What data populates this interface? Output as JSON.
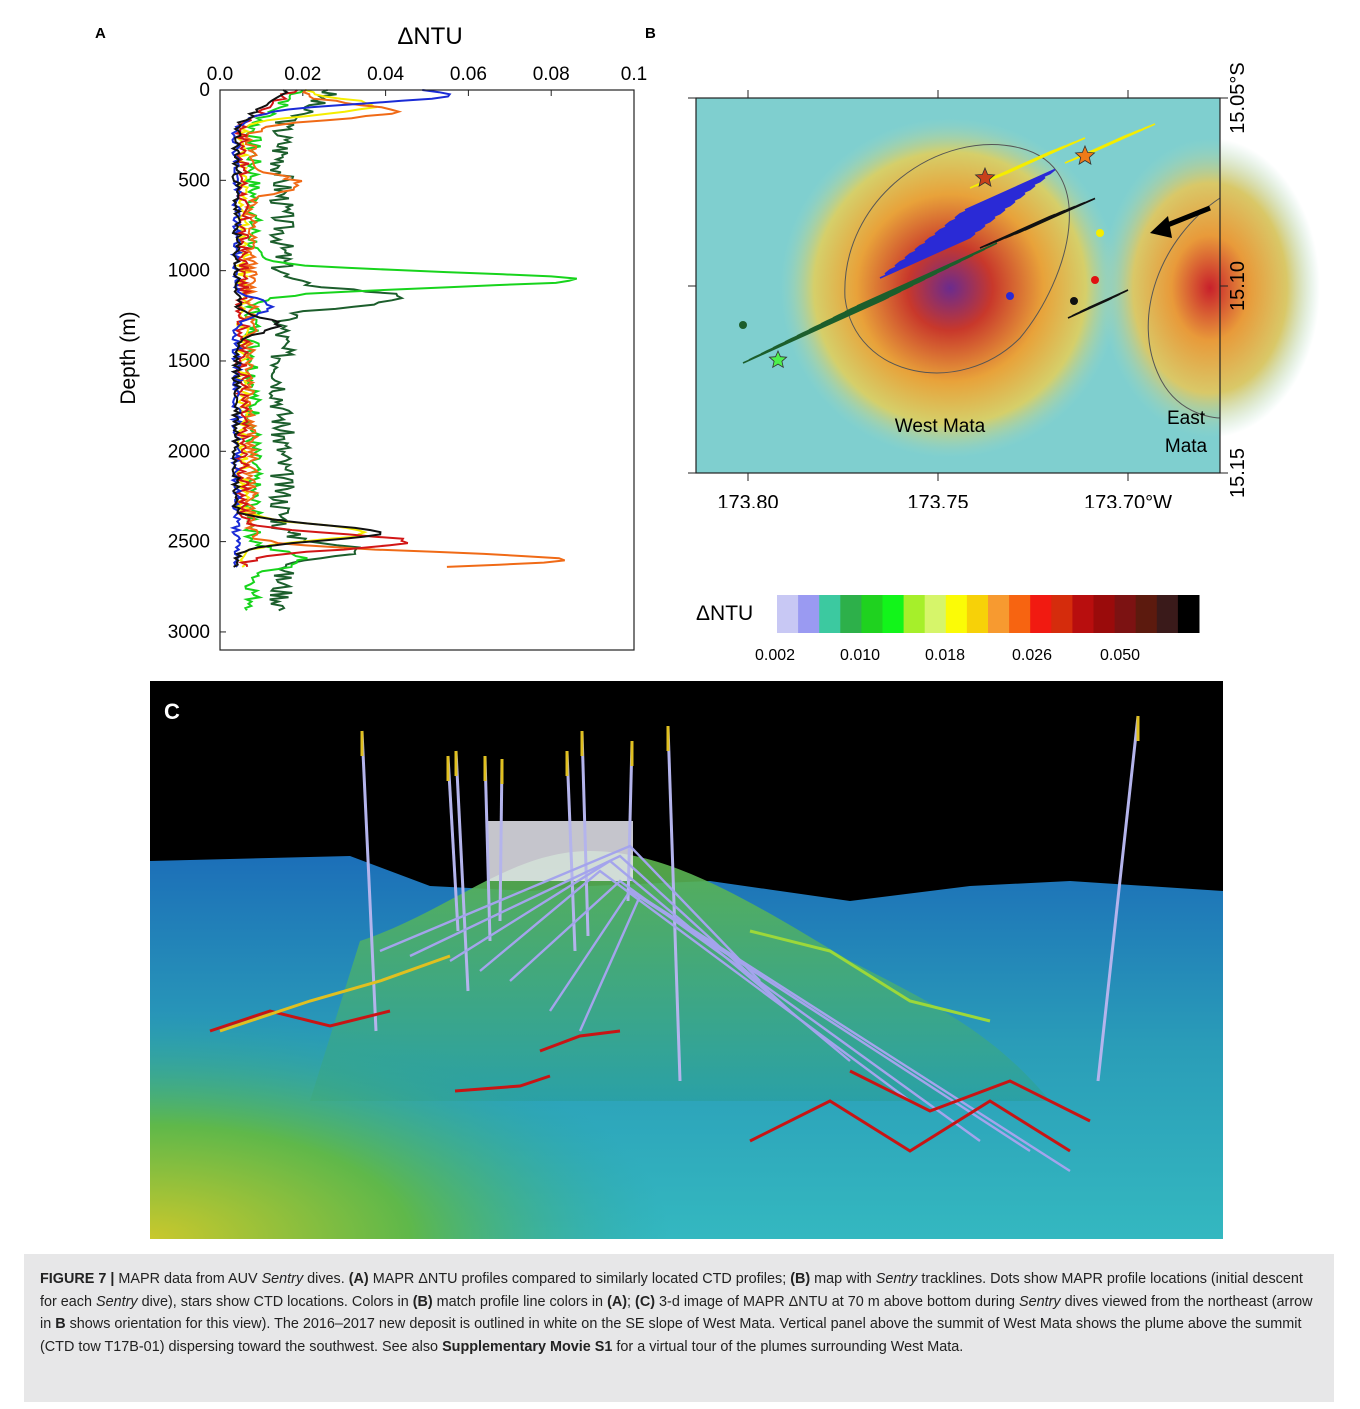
{
  "panelA": {
    "letter": "A",
    "xlabel": "ΔNTU",
    "ylabel": "Depth (m)",
    "xticks": [
      "0.0",
      "0.02",
      "0.04",
      "0.06",
      "0.08",
      "0.1"
    ],
    "yticks": [
      "0",
      "500",
      "1000",
      "1500",
      "2000",
      "2500",
      "3000"
    ]
  },
  "panelB": {
    "letter": "B",
    "lat_labels": [
      "15.05°S",
      "15.10",
      "15.15"
    ],
    "lon_labels": [
      "173.80",
      "173.75",
      "173.70°W"
    ],
    "label_west": "West Mata",
    "label_east_1": "East",
    "label_east_2": "Mata"
  },
  "colorbar": {
    "label": "ΔNTU",
    "tick_labels": [
      "0.002",
      "0.010",
      "0.018",
      "0.026",
      "0.050"
    ],
    "colors": [
      "#c8c8f4",
      "#9a9af2",
      "#3cc9a0",
      "#2db04a",
      "#1fd21f",
      "#12f51a",
      "#a6ef2a",
      "#d6f56a",
      "#fbfb06",
      "#f7d108",
      "#f79a30",
      "#f76411",
      "#f11a11",
      "#d52c0c",
      "#b80e0e",
      "#9a0b0b",
      "#7c1212",
      "#5c1a0e",
      "#3a1a1a",
      "#000000"
    ]
  },
  "panelC": {
    "letter": "C"
  },
  "caption": {
    "fig": "FIGURE 7 |",
    "t1": " MAPR data from AUV ",
    "sentry1": "Sentry",
    "t2": " dives. ",
    "a": "(A)",
    "t3": " MAPR ΔNTU profiles compared to similarly located CTD profiles; ",
    "b": "(B)",
    "t4": " map with ",
    "sentry2": "Sentry",
    "t5": " tracklines. Dots show MAPR profile locations (initial descent for each ",
    "sentry3": "Sentry",
    "t6": " dive), stars show CTD locations. Colors in ",
    "b2": "(B)",
    "t7": " match profile line colors in ",
    "a2": "(A)",
    "t8": "; ",
    "c": "(C)",
    "t9": " 3-d image of MAPR ΔNTU at 70 m above bottom during ",
    "sentry4": "Sentry",
    "t10": " dives viewed from the northeast (arrow in ",
    "bbold": "B",
    "t11": " shows orientation for this view). The 2016–2017 new deposit is outlined in white on the SE slope of West Mata. Vertical panel above the summit of West Mata shows the plume above the summit (CTD tow T17B-01) dispersing toward the southwest. See also ",
    "supp": "Supplementary Movie S1",
    "t12": " for a virtual tour of the plumes surrounding West Mata."
  }
}
